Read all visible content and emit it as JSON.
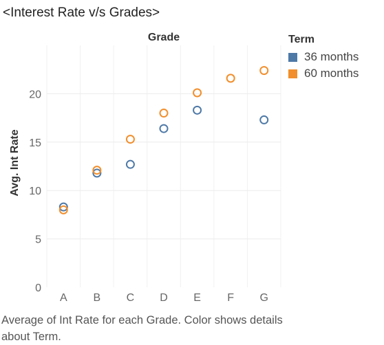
{
  "title": "<Interest Rate v/s Grades>",
  "legend": {
    "title": "Term",
    "items": [
      {
        "label": "36 months",
        "color": "#4e79a7"
      },
      {
        "label": "60 months",
        "color": "#f28e2b"
      }
    ]
  },
  "caption": "Average of Int Rate for each Grade.  Color shows details about Term.",
  "chart_data": {
    "type": "scatter",
    "title": "<Interest Rate v/s Grades>",
    "xlabel": "Grade",
    "ylabel": "Avg. Int Rate",
    "categories": [
      "A",
      "B",
      "C",
      "D",
      "E",
      "F",
      "G"
    ],
    "ylim": [
      0,
      25
    ],
    "yticks": [
      0,
      5,
      10,
      15,
      20
    ],
    "grid": true,
    "legend_position": "right",
    "series": [
      {
        "name": "36 months",
        "color": "#4e79a7",
        "values": [
          8.3,
          11.8,
          12.7,
          16.4,
          18.3,
          null,
          17.3
        ]
      },
      {
        "name": "60 months",
        "color": "#f28e2b",
        "values": [
          8.0,
          12.1,
          15.3,
          18.0,
          20.1,
          21.6,
          22.4
        ]
      }
    ]
  }
}
